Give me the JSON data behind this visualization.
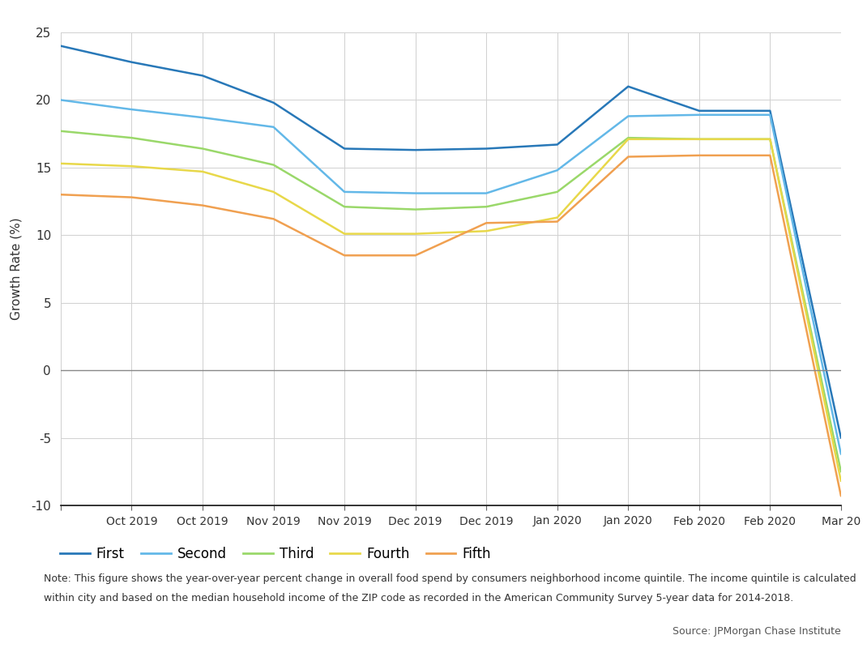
{
  "x_labels": [
    "",
    "Oct 2019",
    "Oct 2019",
    "Nov 2019",
    "Nov 2019",
    "Dec 2019",
    "Dec 2019",
    "Jan 2020",
    "Jan 2020",
    "Feb 2020",
    "Feb 2020",
    "Mar 20"
  ],
  "x_positions": [
    0,
    1,
    2,
    3,
    4,
    5,
    6,
    7,
    8,
    9,
    10,
    11
  ],
  "series": {
    "First": {
      "color": "#2878b8",
      "values": [
        24.0,
        22.8,
        21.8,
        19.8,
        16.4,
        16.3,
        16.4,
        16.7,
        21.0,
        19.2,
        19.2,
        -5.0
      ]
    },
    "Second": {
      "color": "#63b8e8",
      "values": [
        20.0,
        19.3,
        18.7,
        18.0,
        13.2,
        13.1,
        13.1,
        14.8,
        18.8,
        18.9,
        18.9,
        -6.2
      ]
    },
    "Third": {
      "color": "#9ad86a",
      "values": [
        17.7,
        17.2,
        16.4,
        15.2,
        12.1,
        11.9,
        12.1,
        13.2,
        17.2,
        17.1,
        17.1,
        -7.5
      ]
    },
    "Fourth": {
      "color": "#e8d84a",
      "values": [
        15.3,
        15.1,
        14.7,
        13.2,
        10.1,
        10.1,
        10.3,
        11.3,
        17.1,
        17.1,
        17.1,
        -8.2
      ]
    },
    "Fifth": {
      "color": "#f0a050",
      "values": [
        13.0,
        12.8,
        12.2,
        11.2,
        8.5,
        8.5,
        10.9,
        11.0,
        15.8,
        15.9,
        15.9,
        -9.3
      ]
    }
  },
  "ylim": [
    -10,
    25
  ],
  "yticks": [
    -10,
    -5,
    0,
    5,
    10,
    15,
    20,
    25
  ],
  "ylabel": "Growth Rate (%)",
  "note_line1": "Note: This figure shows the year-over-year percent change in overall food spend by consumers neighborhood income quintile. The income quintile is calculated",
  "note_line2": "within city and based on the median household income of the ZIP code as recorded in the American Community Survey 5-year data for 2014-2018.",
  "source": "Source: JPMorgan Chase Institute",
  "background_color": "#ffffff",
  "grid_color": "#d0d0d0",
  "zero_line_color": "#888888",
  "spine_color": "#333333",
  "bottom_line_color": "#111111"
}
